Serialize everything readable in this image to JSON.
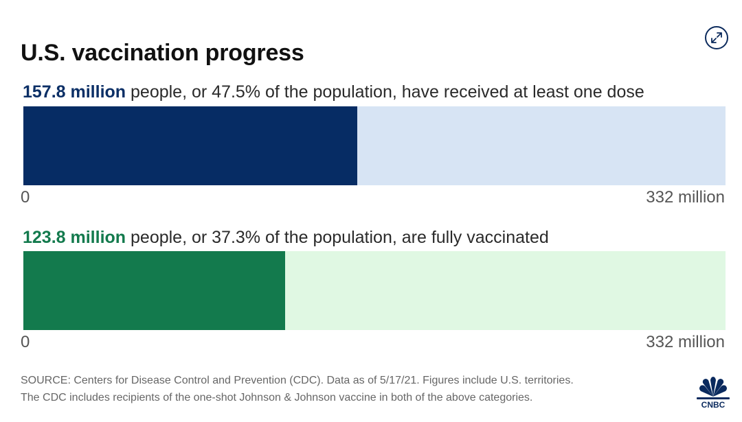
{
  "title": "U.S. vaccination progress",
  "expand_icon": "expand-arrows-icon",
  "chart_data": [
    {
      "type": "bar",
      "label_lead": "157.8 million",
      "label_rest": " people, or 47.5% of the population, have received at least one dose",
      "value": 157.8,
      "percent": 47.5,
      "xlim": [
        0,
        332
      ],
      "axis_min_label": "0",
      "axis_max_label": "332 million",
      "fill_color": "#062c64",
      "track_color": "#d7e4f4",
      "lead_color": "#0b2f66"
    },
    {
      "type": "bar",
      "label_lead": "123.8 million",
      "label_rest": " people, or 37.3% of the population, are fully vaccinated",
      "value": 123.8,
      "percent": 37.3,
      "xlim": [
        0,
        332
      ],
      "axis_min_label": "0",
      "axis_max_label": "332 million",
      "fill_color": "#137a4d",
      "track_color": "#e0f8e3",
      "lead_color": "#137a4d"
    }
  ],
  "source_line1": "SOURCE: Centers for Disease Control and Prevention (CDC). Data as of 5/17/21. Figures include U.S. territories.",
  "source_line2": "The CDC includes recipients of the one-shot Johnson & Johnson vaccine in both of the above categories.",
  "logo": {
    "icon": "cnbc-peacock-logo",
    "text": "CNBC"
  }
}
